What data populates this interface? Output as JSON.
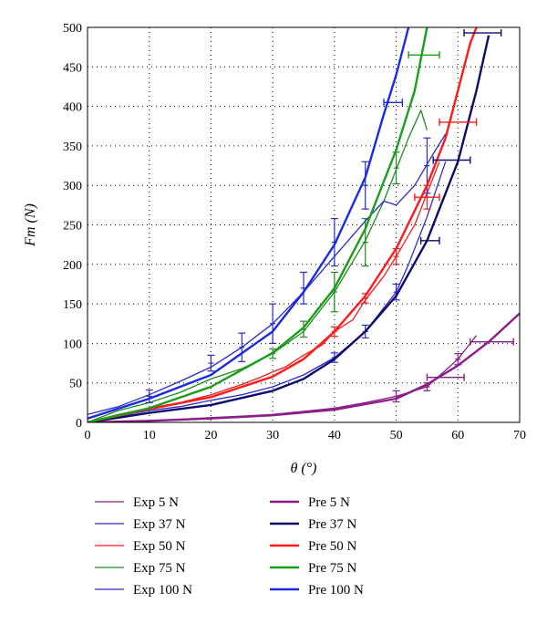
{
  "chart_data": {
    "type": "line",
    "xlabel": "θ (°)",
    "ylabel": "Fm (N)",
    "xlim": [
      0,
      70
    ],
    "ylim": [
      0,
      500
    ],
    "x_ticks": [
      0,
      10,
      20,
      30,
      40,
      50,
      60,
      70
    ],
    "y_ticks": [
      0,
      50,
      100,
      150,
      200,
      250,
      300,
      350,
      400,
      450,
      500
    ],
    "grid": "dotted",
    "legend_placement": "bottom",
    "series": [
      {
        "name": "Exp 5 N",
        "kind": "exp",
        "color": "#8b1d8b",
        "points": [
          [
            0,
            0
          ],
          [
            5,
            1
          ],
          [
            10,
            2
          ],
          [
            15,
            4
          ],
          [
            20,
            6
          ],
          [
            25,
            8
          ],
          [
            30,
            10
          ],
          [
            35,
            14
          ],
          [
            40,
            18
          ],
          [
            45,
            25
          ],
          [
            50,
            33
          ],
          [
            55,
            45
          ],
          [
            60,
            80
          ],
          [
            63,
            110
          ]
        ],
        "errorbars": [
          {
            "x": 50,
            "y": 33,
            "err": 7
          },
          {
            "x": 55,
            "y": 45,
            "err": 5
          },
          {
            "x": 60,
            "y": 80,
            "err": 7
          }
        ]
      },
      {
        "name": "Exp 37 N",
        "kind": "exp",
        "color": "#2a2ac8",
        "points": [
          [
            0,
            0
          ],
          [
            5,
            8
          ],
          [
            10,
            15
          ],
          [
            15,
            20
          ],
          [
            20,
            28
          ],
          [
            25,
            35
          ],
          [
            30,
            45
          ],
          [
            35,
            60
          ],
          [
            40,
            82
          ],
          [
            45,
            115
          ],
          [
            50,
            165
          ],
          [
            52,
            200
          ],
          [
            55,
            260
          ],
          [
            58,
            330
          ]
        ],
        "errorbars": [
          {
            "x": 40,
            "y": 82,
            "err": 6
          },
          {
            "x": 45,
            "y": 115,
            "err": 8
          },
          {
            "x": 50,
            "y": 165,
            "err": 10
          }
        ]
      },
      {
        "name": "Exp 50 N",
        "kind": "exp",
        "color": "#e82020",
        "points": [
          [
            0,
            0
          ],
          [
            5,
            10
          ],
          [
            10,
            18
          ],
          [
            15,
            25
          ],
          [
            20,
            35
          ],
          [
            25,
            48
          ],
          [
            28,
            57
          ],
          [
            30,
            64
          ],
          [
            32,
            70
          ],
          [
            35,
            85
          ],
          [
            38,
            98
          ],
          [
            40,
            115
          ],
          [
            43,
            130
          ],
          [
            45,
            155
          ],
          [
            48,
            185
          ],
          [
            50,
            210
          ],
          [
            53,
            250
          ],
          [
            55,
            290
          ],
          [
            57,
            330
          ]
        ],
        "errorbars": [
          {
            "x": 40,
            "y": 115,
            "err": 6
          },
          {
            "x": 45,
            "y": 157,
            "err": 6
          },
          {
            "x": 50,
            "y": 210,
            "err": 10
          },
          {
            "x": 55,
            "y": 285,
            "err": 15
          }
        ]
      },
      {
        "name": "Exp 75 N",
        "kind": "exp",
        "color": "#1f8a1f",
        "points": [
          [
            0,
            0
          ],
          [
            5,
            15
          ],
          [
            10,
            25
          ],
          [
            15,
            38
          ],
          [
            20,
            55
          ],
          [
            25,
            68
          ],
          [
            30,
            87
          ],
          [
            35,
            115
          ],
          [
            40,
            165
          ],
          [
            45,
            230
          ],
          [
            48,
            280
          ],
          [
            50,
            320
          ],
          [
            52,
            360
          ],
          [
            54,
            395
          ],
          [
            55,
            370
          ]
        ],
        "errorbars": [
          {
            "x": 30,
            "y": 87,
            "err": 6
          },
          {
            "x": 35,
            "y": 118,
            "err": 10
          },
          {
            "x": 40,
            "y": 165,
            "err": 25
          },
          {
            "x": 45,
            "y": 228,
            "err": 30
          },
          {
            "x": 50,
            "y": 322,
            "err": 20
          }
        ]
      },
      {
        "name": "Exp 100 N",
        "kind": "exp",
        "color": "#2a2ac8",
        "points": [
          [
            0,
            10
          ],
          [
            5,
            20
          ],
          [
            10,
            35
          ],
          [
            15,
            52
          ],
          [
            20,
            70
          ],
          [
            25,
            95
          ],
          [
            30,
            125
          ],
          [
            35,
            165
          ],
          [
            40,
            210
          ],
          [
            45,
            255
          ],
          [
            48,
            280
          ],
          [
            50,
            275
          ],
          [
            53,
            300
          ],
          [
            56,
            340
          ],
          [
            58,
            365
          ]
        ],
        "errorbars": [
          {
            "x": 10,
            "y": 33,
            "err": 8
          },
          {
            "x": 20,
            "y": 75,
            "err": 10
          },
          {
            "x": 25,
            "y": 95,
            "err": 18
          },
          {
            "x": 30,
            "y": 125,
            "err": 25
          },
          {
            "x": 35,
            "y": 170,
            "err": 20
          },
          {
            "x": 40,
            "y": 228,
            "err": 30
          },
          {
            "x": 45,
            "y": 300,
            "err": 30
          },
          {
            "x": 55,
            "y": 325,
            "err": 35
          }
        ]
      },
      {
        "name": "Pre 5 N",
        "kind": "pre",
        "color": "#8b1d8b",
        "points": [
          [
            0,
            0
          ],
          [
            10,
            2
          ],
          [
            20,
            5
          ],
          [
            30,
            9
          ],
          [
            40,
            16
          ],
          [
            50,
            30
          ],
          [
            55,
            48
          ],
          [
            60,
            72
          ],
          [
            65,
            102
          ],
          [
            70,
            138
          ]
        ]
      },
      {
        "name": "Pre 37 N",
        "kind": "pre",
        "color": "#0b0b6b",
        "points": [
          [
            0,
            0
          ],
          [
            10,
            12
          ],
          [
            20,
            22
          ],
          [
            30,
            40
          ],
          [
            35,
            55
          ],
          [
            40,
            80
          ],
          [
            45,
            115
          ],
          [
            50,
            160
          ],
          [
            55,
            230
          ],
          [
            60,
            330
          ],
          [
            63,
            420
          ],
          [
            65,
            490
          ]
        ]
      },
      {
        "name": "Pre 50 N",
        "kind": "pre",
        "color": "#ff1a1a",
        "points": [
          [
            0,
            0
          ],
          [
            10,
            17
          ],
          [
            20,
            32
          ],
          [
            30,
            58
          ],
          [
            35,
            80
          ],
          [
            40,
            115
          ],
          [
            45,
            160
          ],
          [
            50,
            220
          ],
          [
            55,
            300
          ],
          [
            58,
            360
          ],
          [
            60,
            420
          ],
          [
            62,
            480
          ],
          [
            63,
            500
          ]
        ]
      },
      {
        "name": "Pre 75 N",
        "kind": "pre",
        "color": "#1a9e1a",
        "points": [
          [
            0,
            0
          ],
          [
            10,
            18
          ],
          [
            20,
            45
          ],
          [
            30,
            88
          ],
          [
            35,
            120
          ],
          [
            40,
            170
          ],
          [
            45,
            245
          ],
          [
            50,
            345
          ],
          [
            53,
            420
          ],
          [
            55,
            500
          ]
        ]
      },
      {
        "name": "Pre 100 N",
        "kind": "pre",
        "color": "#1a2ae0",
        "points": [
          [
            0,
            5
          ],
          [
            10,
            30
          ],
          [
            20,
            60
          ],
          [
            30,
            115
          ],
          [
            35,
            165
          ],
          [
            40,
            225
          ],
          [
            45,
            310
          ],
          [
            48,
            390
          ],
          [
            50,
            440
          ],
          [
            52,
            500
          ]
        ]
      }
    ],
    "h_errorbars": [
      {
        "series": "Pre 37 N",
        "y": 493,
        "x_from": 61,
        "x_to": 67
      },
      {
        "series": "Pre 75 N",
        "y": 465,
        "x_from": 52,
        "x_to": 57
      },
      {
        "series": "Pre 100 N",
        "y": 405,
        "x_from": 48,
        "x_to": 51
      },
      {
        "series": "Pre 50 N",
        "y": 380,
        "x_from": 57,
        "x_to": 63
      },
      {
        "series": "Pre 37 N",
        "y": 332,
        "x_from": 56,
        "x_to": 62
      },
      {
        "series": "Pre 37 N",
        "y": 230,
        "x_from": 54,
        "x_to": 57
      },
      {
        "series": "Pre 50 N",
        "y": 285,
        "x_from": 53,
        "x_to": 57
      },
      {
        "series": "Pre 5 N",
        "y": 102,
        "x_from": 62,
        "x_to": 69
      },
      {
        "series": "Pre 5 N",
        "y": 57,
        "x_from": 55,
        "x_to": 61
      }
    ],
    "legend_columns": [
      [
        "Exp 5 N",
        "Exp 37 N",
        "Exp 50 N",
        "Exp 75 N",
        "Exp 100 N"
      ],
      [
        "Pre 5 N",
        "Pre 37 N",
        "Pre 50 N",
        "Pre 75 N",
        "Pre 100 N"
      ]
    ]
  }
}
